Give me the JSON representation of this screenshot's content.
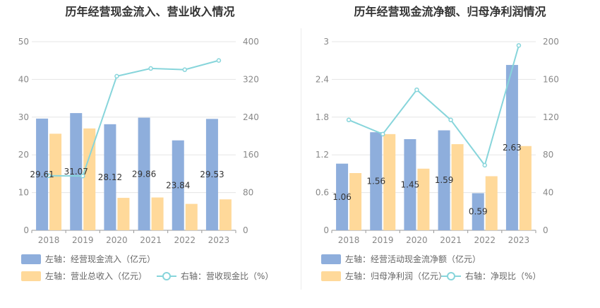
{
  "colors": {
    "bar_primary": "#8eaedc",
    "bar_secondary": "#ffd99a",
    "line": "#87d5db",
    "grid": "#e5e5e5",
    "axis": "#999999"
  },
  "chart_data": [
    {
      "type": "bar+line",
      "title": "历年经营现金流入、营业收入情况",
      "categories": [
        "2018",
        "2019",
        "2020",
        "2021",
        "2022",
        "2023"
      ],
      "left_axis": {
        "ylim": [
          0,
          50
        ],
        "ticks": [
          "0",
          "10",
          "20",
          "30",
          "40",
          "50"
        ]
      },
      "right_axis": {
        "ylim": [
          0,
          400
        ],
        "ticks": [
          "0",
          "80",
          "160",
          "240",
          "320",
          "400"
        ]
      },
      "series": [
        {
          "name": "左轴：经营现金流入（亿元）",
          "kind": "bar",
          "axis": "left",
          "color": "#8eaedc",
          "values": [
            29.61,
            31.07,
            28.12,
            29.86,
            23.84,
            29.53
          ],
          "labels": [
            "29.61",
            "31.07",
            "28.12",
            "29.86",
            "23.84",
            "29.53"
          ]
        },
        {
          "name": "左轴：营业总收入（亿元）",
          "kind": "bar",
          "axis": "left",
          "color": "#ffd99a",
          "values": [
            25.6,
            27.0,
            8.6,
            8.7,
            7.0,
            8.2
          ]
        },
        {
          "name": "右轴：营收现金比（%）",
          "kind": "line",
          "axis": "right",
          "color": "#87d5db",
          "values": [
            115.7,
            115.1,
            326.8,
            343.2,
            340.6,
            360.1
          ]
        }
      ]
    },
    {
      "type": "bar+line",
      "title": "历年经营现金流净额、归母净利润情况",
      "categories": [
        "2018",
        "2019",
        "2020",
        "2021",
        "2022",
        "2023"
      ],
      "left_axis": {
        "ylim": [
          0,
          3
        ],
        "ticks": [
          "0",
          "0.6",
          "1.2",
          "1.8",
          "2.4",
          "3"
        ]
      },
      "right_axis": {
        "ylim": [
          0,
          200
        ],
        "ticks": [
          "0",
          "40",
          "80",
          "120",
          "160",
          "200"
        ]
      },
      "series": [
        {
          "name": "左轴：经营活动现金流净额（亿元）",
          "kind": "bar",
          "axis": "left",
          "color": "#8eaedc",
          "values": [
            1.06,
            1.56,
            1.45,
            1.59,
            0.59,
            2.63
          ],
          "labels": [
            "1.06",
            "1.56",
            "1.45",
            "1.59",
            "0.59",
            "2.63"
          ]
        },
        {
          "name": "左轴：归母净利润（亿元）",
          "kind": "bar",
          "axis": "left",
          "color": "#ffd99a",
          "values": [
            0.91,
            1.53,
            0.98,
            1.37,
            0.86,
            1.34
          ]
        },
        {
          "name": "右轴：净现比（%）",
          "kind": "line",
          "axis": "right",
          "color": "#87d5db",
          "values": [
            117,
            102,
            149,
            117,
            69,
            196
          ]
        }
      ]
    }
  ]
}
